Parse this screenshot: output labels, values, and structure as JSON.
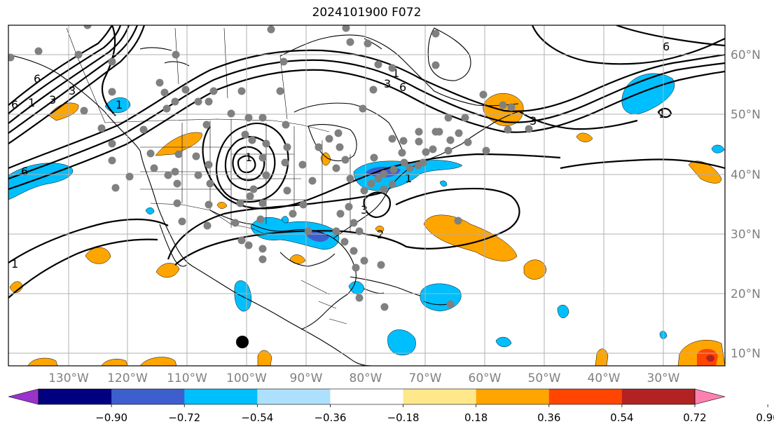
{
  "title": "2024101900 F072",
  "lon_labels": [
    "130°W",
    "120°W",
    "110°W",
    "100°W",
    "90°W",
    "80°W",
    "70°W",
    "60°W",
    "50°W",
    "40°W",
    "30°W"
  ],
  "lat_labels": [
    "60°N",
    "50°N",
    "40°N",
    "30°N",
    "20°N",
    "10°N"
  ],
  "colorbar": {
    "colors": [
      "#9933cc",
      "#000080",
      "#3d5fce",
      "#00bfff",
      "#ade0fc",
      "#ffffff",
      "#ffe88a",
      "#ffa500",
      "#ff4500",
      "#b22222",
      "#ff80b0"
    ],
    "tick_labels": [
      "−0.90",
      "−0.72",
      "−0.54",
      "−0.36",
      "−0.18",
      "0.18",
      "0.36",
      "0.54",
      "0.72",
      "0.90"
    ]
  },
  "contour_labels": [
    "6",
    "3",
    "6",
    "3",
    "1",
    "3",
    "1",
    "6",
    "6",
    "3",
    "1",
    "6",
    "1",
    "1",
    "1",
    "3",
    "2",
    "1"
  ],
  "marker": "station-dot"
}
